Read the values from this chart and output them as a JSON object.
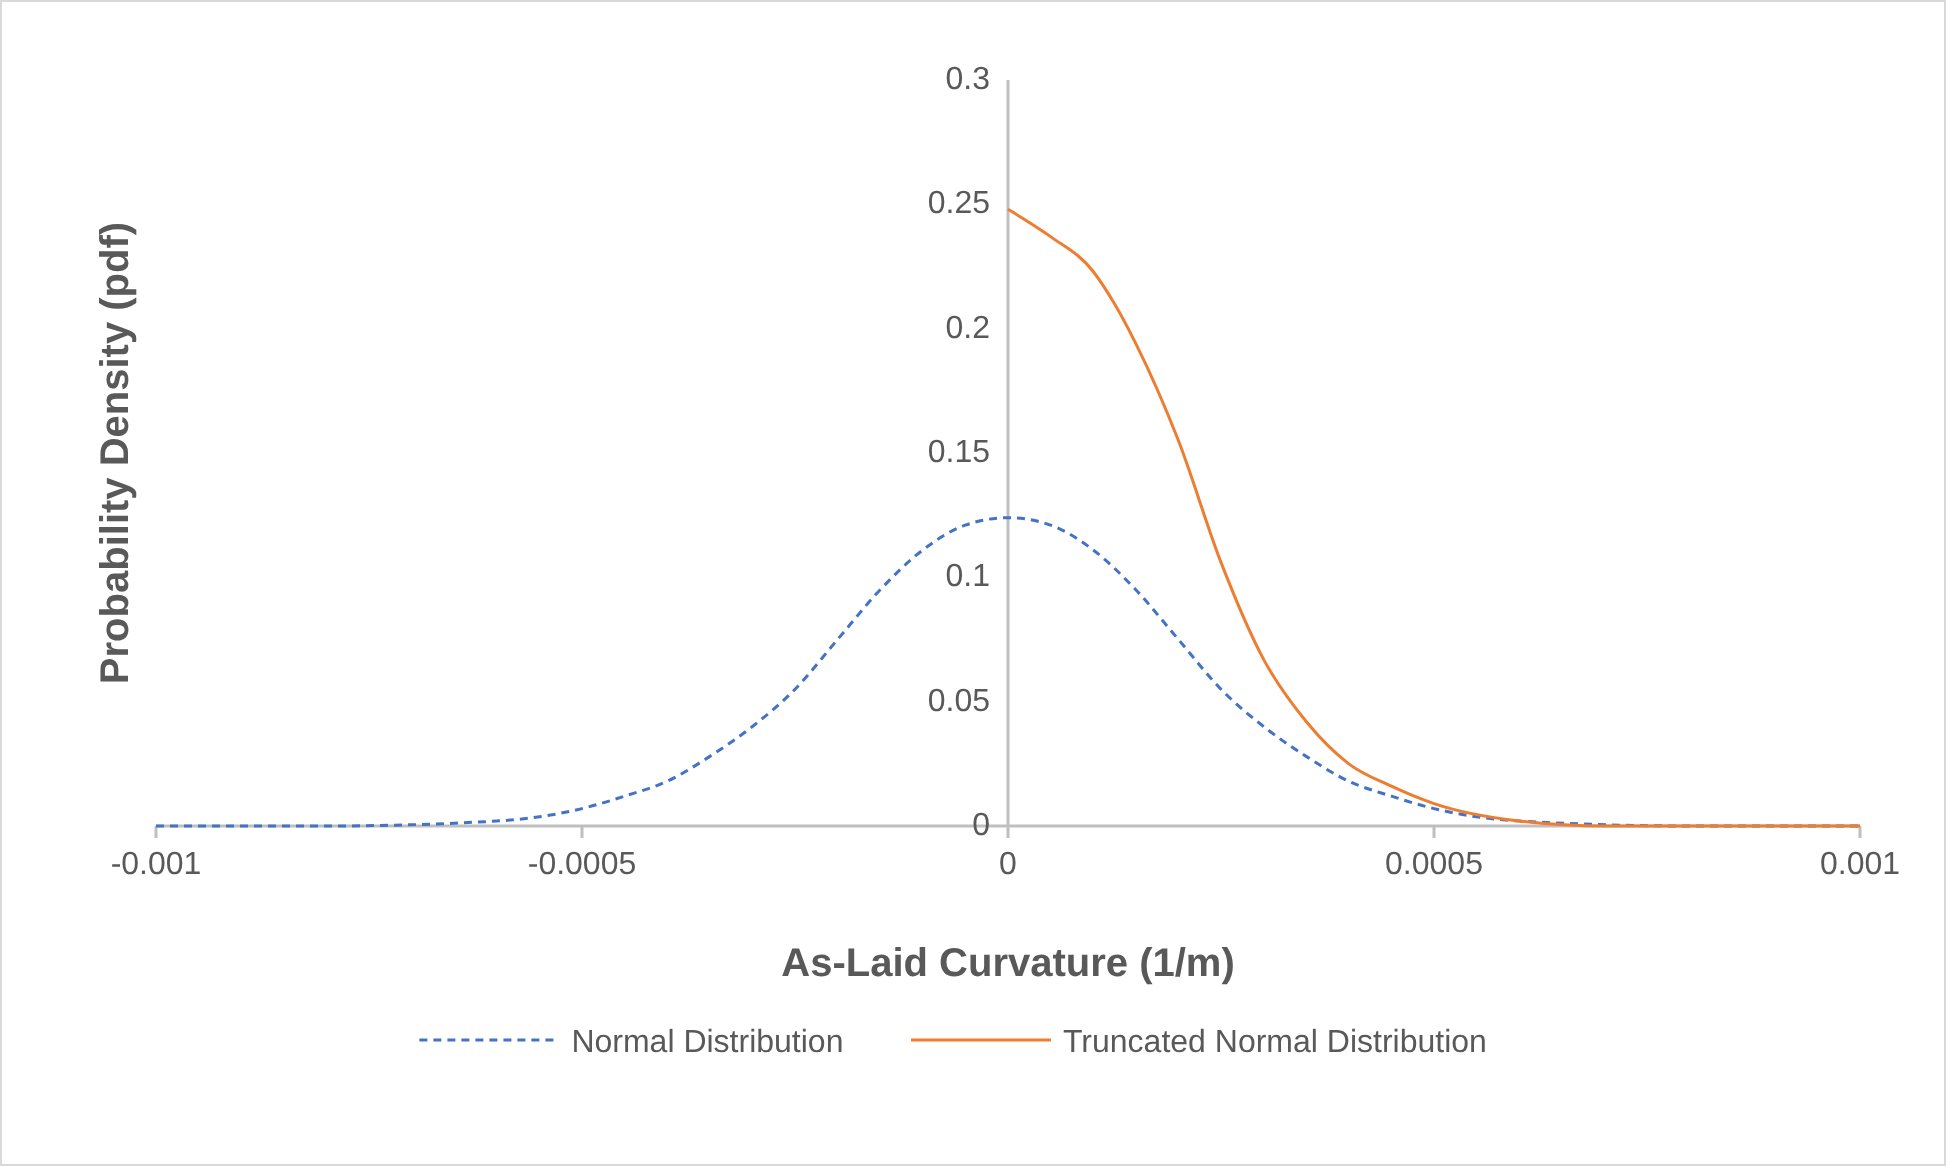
{
  "chart_data": {
    "type": "line",
    "xlabel": "As-Laid Curvature (1/m)",
    "ylabel": "Probability Density (pdf)",
    "xlim": [
      -0.001,
      0.001
    ],
    "xticks": [
      -0.001,
      -0.0005,
      0,
      0.0005,
      0.001
    ],
    "ylim": [
      0,
      0.3
    ],
    "yticks": [
      0,
      0.05,
      0.1,
      0.15,
      0.2,
      0.25,
      0.3
    ],
    "grid": false,
    "legend": "bottom",
    "marker": "none",
    "series": [
      {
        "name": "Normal Distribution",
        "color": "#4472c4",
        "line_style": "dashed",
        "x": [
          -0.001,
          -0.0008,
          -0.0006,
          -0.0005,
          -0.00045,
          -0.0004,
          -0.00035,
          -0.0003,
          -0.00025,
          -0.0002,
          -0.00015,
          -0.0001,
          -5e-05,
          0,
          5e-05,
          0.0001,
          0.00015,
          0.0002,
          0.00025,
          0.0003,
          0.00035,
          0.0004,
          0.00045,
          0.0005,
          0.0006,
          0.0008,
          0.001
        ],
        "values": [
          0,
          0,
          0.002,
          0.007,
          0.012,
          0.018,
          0.028,
          0.04,
          0.055,
          0.075,
          0.095,
          0.111,
          0.121,
          0.124,
          0.121,
          0.111,
          0.095,
          0.075,
          0.055,
          0.04,
          0.028,
          0.018,
          0.012,
          0.007,
          0.002,
          0,
          0
        ]
      },
      {
        "name": "Truncated Normal Distribution",
        "color": "#ed7d31",
        "line_style": "solid",
        "x": [
          0,
          5e-05,
          0.0001,
          0.000125,
          0.00015,
          0.0002,
          0.00025,
          0.0003,
          0.00035,
          0.0004,
          0.00045,
          0.0005,
          0.0006,
          0.0007,
          0.0008,
          0.001
        ],
        "values": [
          0.248,
          0.237,
          0.223,
          0.21,
          0.194,
          0.155,
          0.106,
          0.067,
          0.042,
          0.025,
          0.016,
          0.009,
          0.002,
          0,
          0,
          0
        ]
      }
    ]
  }
}
